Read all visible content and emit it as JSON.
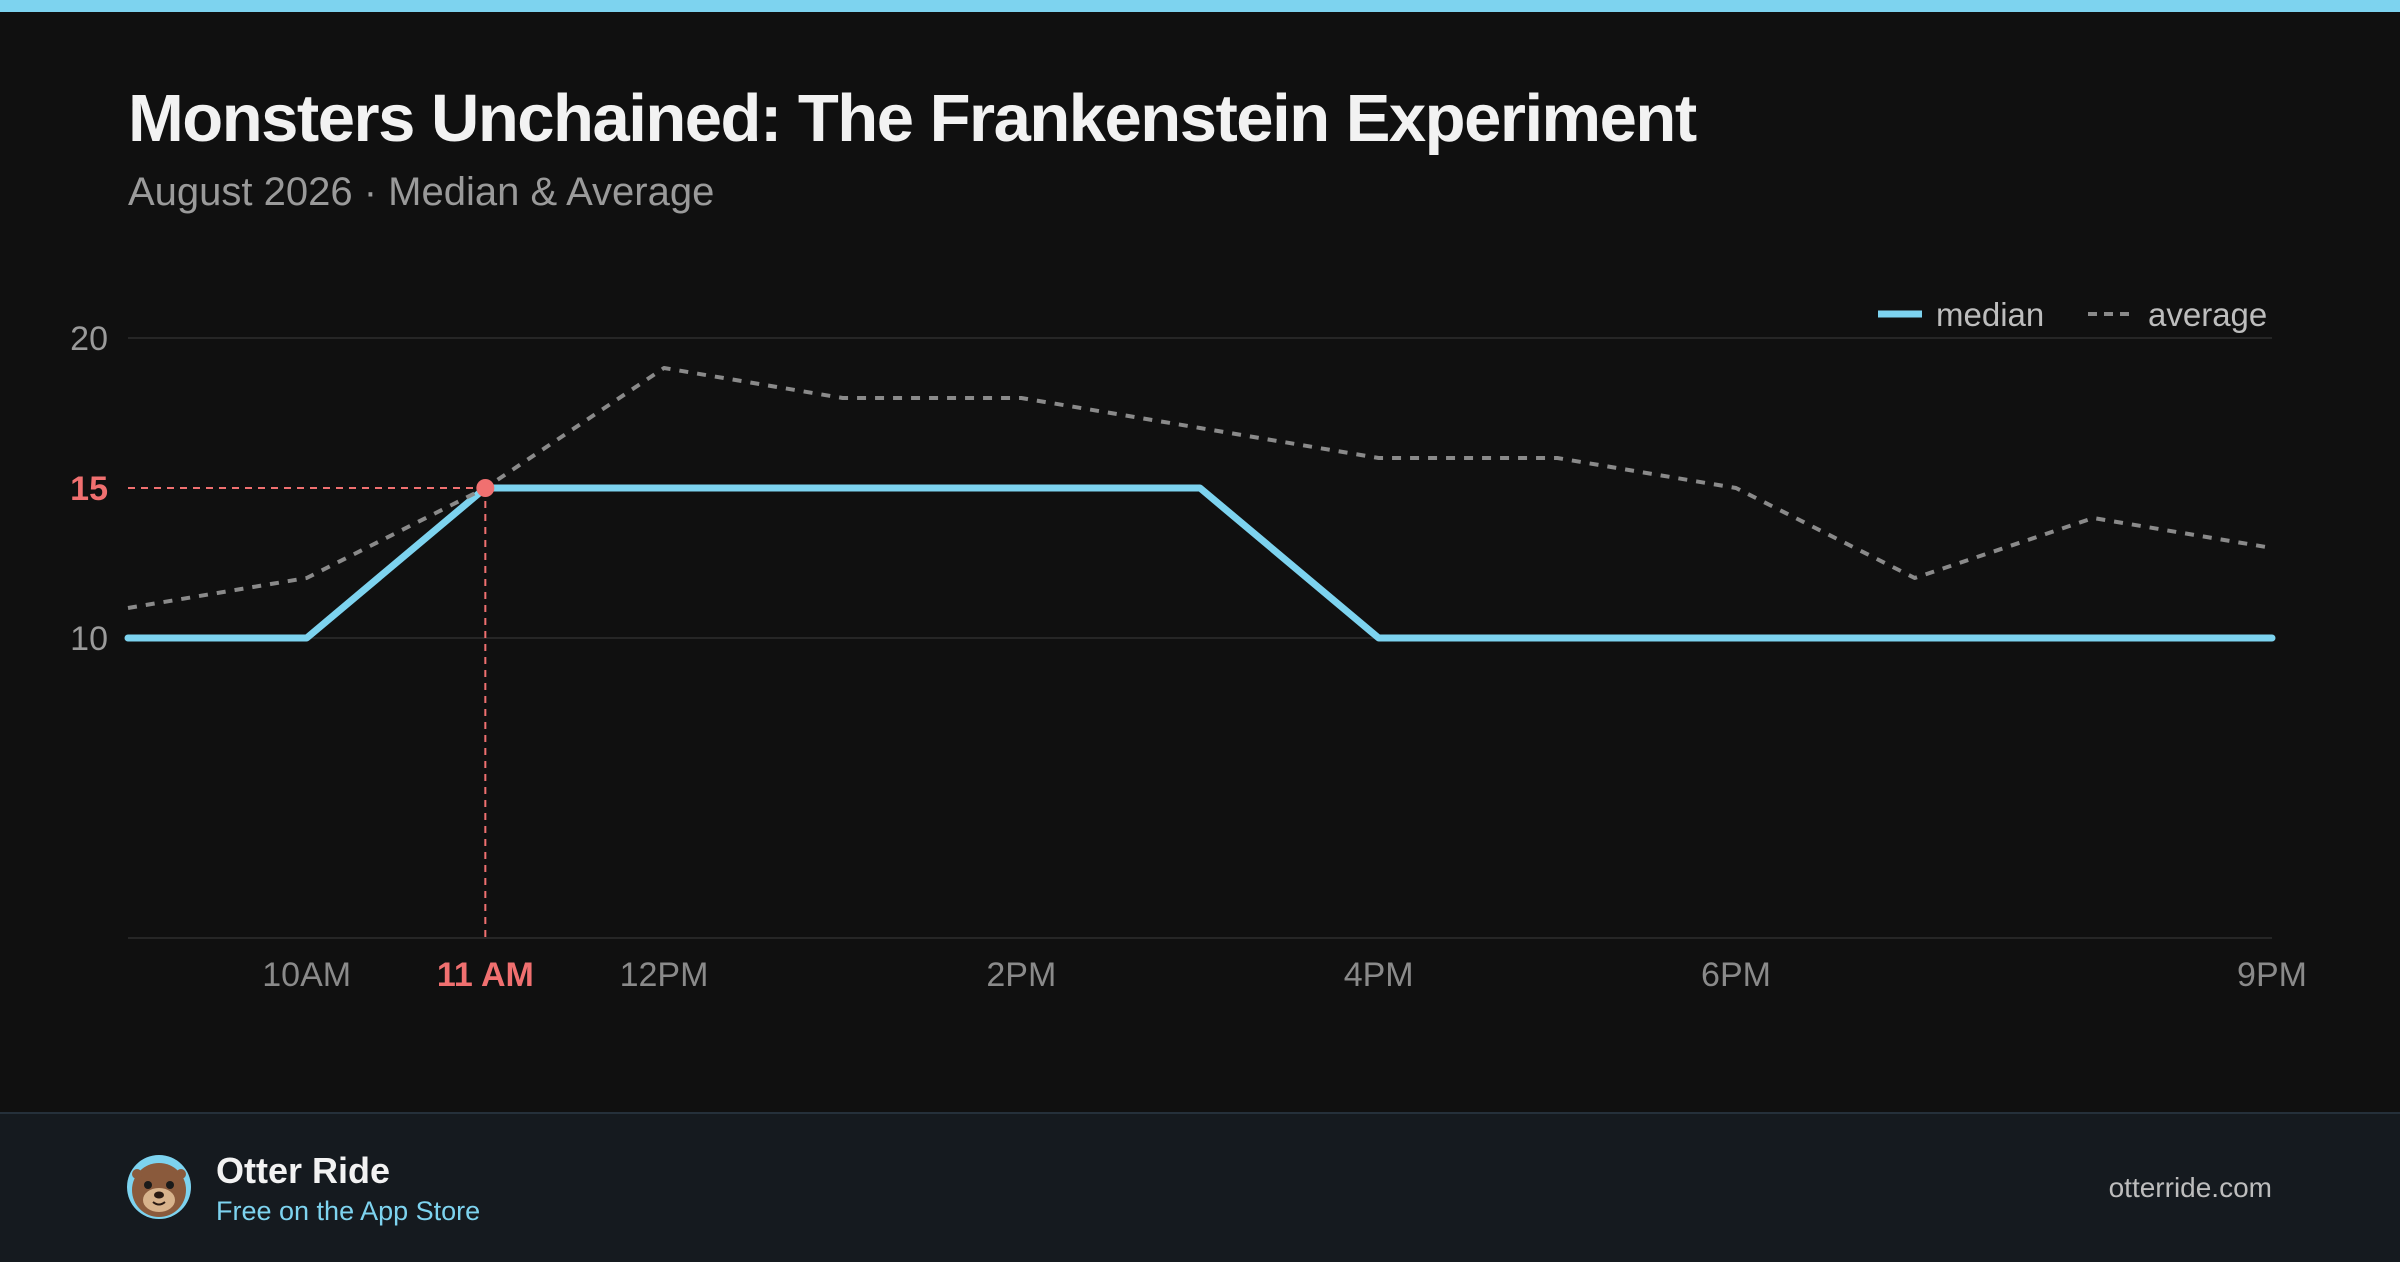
{
  "header": {
    "title": "Monsters Unchained: The Frankenstein Experiment",
    "subtitle": "August 2026 · Median & Average"
  },
  "colors": {
    "background": "#101010",
    "accent": "#7dd3ef",
    "median": "#7dd3ef",
    "average": "#8a8a8a",
    "highlight": "#f07070",
    "footer_bg": "#151a1f"
  },
  "chart_data": {
    "type": "line",
    "x": [
      "9AM",
      "10AM",
      "11AM",
      "12PM",
      "1PM",
      "2PM",
      "3PM",
      "4PM",
      "5PM",
      "6PM",
      "7PM",
      "8PM",
      "9PM"
    ],
    "x_tick_labels": [
      {
        "x": "10AM",
        "label": "10AM"
      },
      {
        "x": "11AM",
        "label": "11 AM",
        "highlight": true
      },
      {
        "x": "12PM",
        "label": "12PM"
      },
      {
        "x": "2PM",
        "label": "2PM"
      },
      {
        "x": "4PM",
        "label": "4PM"
      },
      {
        "x": "6PM",
        "label": "6PM"
      },
      {
        "x": "9PM",
        "label": "9PM"
      }
    ],
    "series": [
      {
        "name": "median",
        "style": "solid",
        "values": [
          10,
          10,
          15,
          15,
          15,
          15,
          15,
          10,
          10,
          10,
          10,
          10,
          10
        ]
      },
      {
        "name": "average",
        "style": "dashed",
        "values": [
          11,
          12,
          15,
          19,
          18,
          18,
          17,
          16,
          16,
          15,
          12,
          14,
          13
        ]
      }
    ],
    "y_ticks": [
      10,
      20
    ],
    "ylim": [
      0,
      20
    ],
    "grid": true,
    "legend": "top-right",
    "highlight": {
      "x": "11AM",
      "value": 15,
      "label": "15"
    }
  },
  "footer": {
    "app_name": "Otter Ride",
    "tagline": "Free on the App Store",
    "website": "otterride.com",
    "logo_icon": "otter-icon"
  }
}
